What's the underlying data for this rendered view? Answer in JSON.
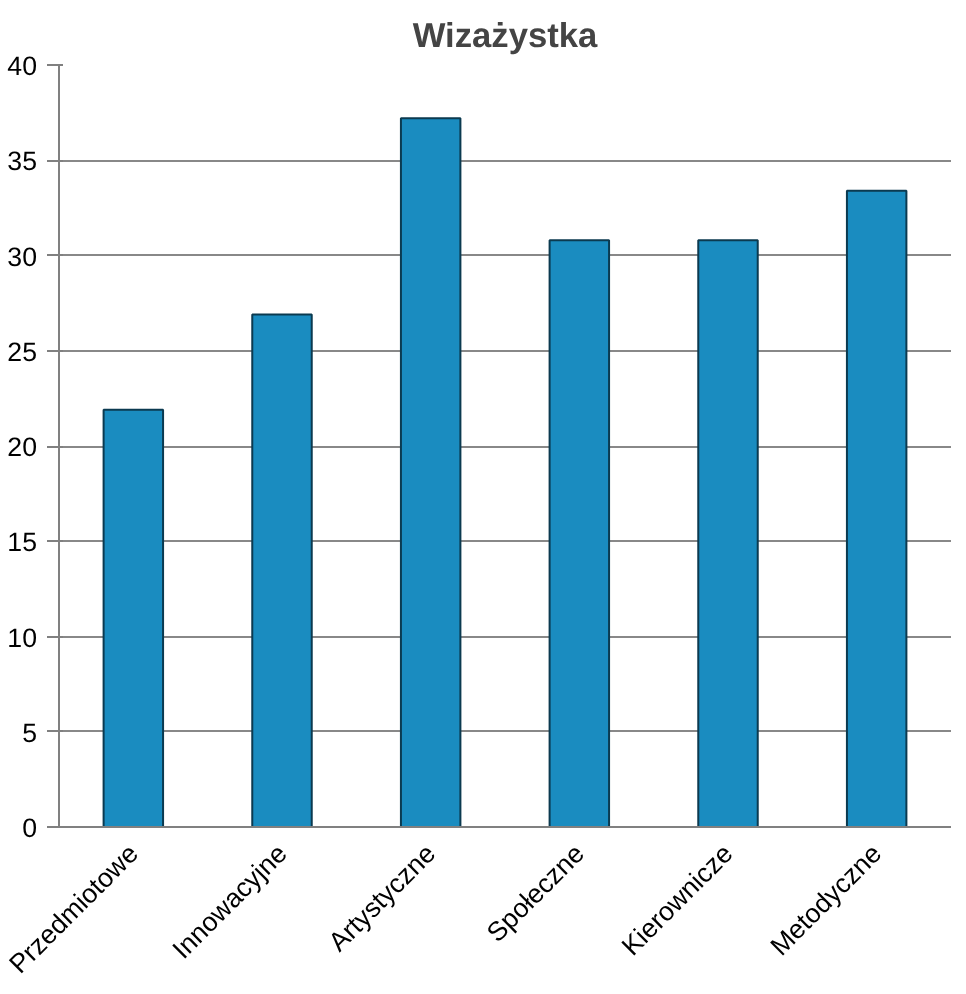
{
  "chart_data": {
    "type": "bar",
    "title": "Wizażystka",
    "categories": [
      "Przedmiotowe",
      "Innowacyjne",
      "Artystyczne",
      "Społeczne",
      "Kierownicze",
      "Metodyczne"
    ],
    "values": [
      21.9,
      26.9,
      37.2,
      30.8,
      30.8,
      33.4
    ],
    "color": "#1a8cc0",
    "ylim": [
      0,
      40
    ],
    "yticks": [
      0,
      5,
      10,
      15,
      20,
      25,
      30,
      35,
      40
    ],
    "grid": "y"
  }
}
